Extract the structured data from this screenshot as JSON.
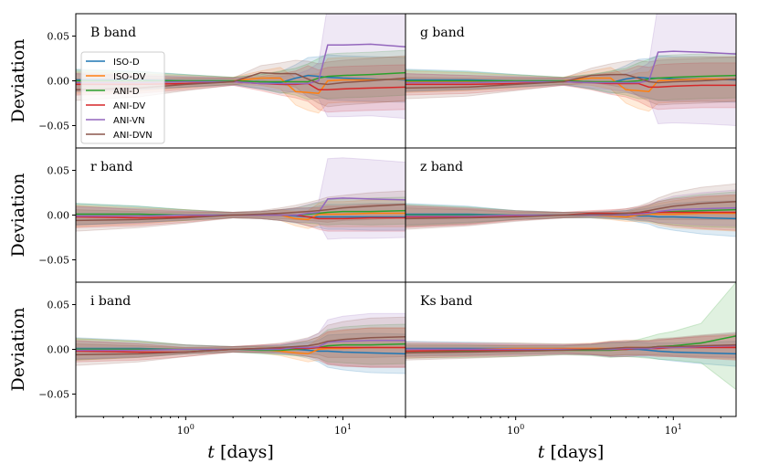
{
  "chart_data": {
    "type": "line",
    "ylabel": "Deviation",
    "xlabel": "t [days]",
    "xscale": "log",
    "xlim": [
      0.2,
      25
    ],
    "ylim": [
      -0.075,
      0.075
    ],
    "yticks": [
      -0.05,
      0.0,
      0.05
    ],
    "ytick_labels": [
      "−0.05",
      "0.00",
      "0.05"
    ],
    "xticks": [
      1,
      10
    ],
    "xtick_labels": [
      "10^0",
      "10^1"
    ],
    "grid": false,
    "legend_placement": "left, in B band panel",
    "colors": {
      "ISO-D": "#1f77b4",
      "ISO-DV": "#ff7f0e",
      "ANI-D": "#2ca02c",
      "ANI-DV": "#d62728",
      "ANI-VN": "#9467bd",
      "ANI-DVN": "#8c564b"
    },
    "legend": [
      "ISO-D",
      "ISO-DV",
      "ANI-D",
      "ANI-DV",
      "ANI-VN",
      "ANI-DVN"
    ],
    "x": [
      0.2,
      0.5,
      1,
      2,
      3,
      4,
      5,
      6,
      7,
      8,
      10,
      15,
      25
    ],
    "panels": [
      {
        "title": "B band",
        "band_halfwidth": [
          0.012,
          0.01,
          0.007,
          0.004,
          0.008,
          0.012,
          0.015,
          0.02,
          0.022,
          0.025,
          0.025,
          0.025,
          0.025
        ],
        "series": [
          {
            "name": "ISO-D",
            "values": [
              0.001,
              0.001,
              0,
              0,
              -0.001,
              -0.002,
              0.003,
              0.006,
              0.005,
              0.004,
              0.003,
              0.002,
              0.001
            ]
          },
          {
            "name": "ISO-DV",
            "values": [
              -0.002,
              -0.002,
              -0.001,
              0,
              0.003,
              0.003,
              -0.012,
              -0.013,
              -0.014,
              0,
              0.001,
              0.001,
              0.002
            ]
          },
          {
            "name": "ANI-D",
            "values": [
              0,
              0,
              0,
              0,
              -0.001,
              -0.001,
              -0.001,
              -0.001,
              0.003,
              0.005,
              0.006,
              0.007,
              0.009
            ]
          },
          {
            "name": "ANI-DV",
            "values": [
              -0.004,
              -0.004,
              -0.003,
              -0.001,
              -0.003,
              -0.004,
              -0.004,
              -0.003,
              -0.01,
              -0.01,
              -0.009,
              -0.008,
              -0.007
            ]
          },
          {
            "name": "ANI-VN",
            "values": [
              -0.002,
              -0.002,
              -0.001,
              -0.001,
              -0.003,
              -0.003,
              -0.003,
              -0.003,
              0,
              0.04,
              0.04,
              0.041,
              0.038
            ],
            "band_halfwidth": [
              0.01,
              0.008,
              0.006,
              0.004,
              0.006,
              0.008,
              0.01,
              0.015,
              0.02,
              0.08,
              0.08,
              0.08,
              0.08
            ]
          },
          {
            "name": "ANI-DVN",
            "values": [
              -0.01,
              -0.008,
              -0.004,
              -0.001,
              0.009,
              0.008,
              0.008,
              0.002,
              -0.003,
              -0.004,
              -0.002,
              0,
              0.003
            ]
          }
        ]
      },
      {
        "title": "g band",
        "band_halfwidth": [
          0.012,
          0.01,
          0.007,
          0.004,
          0.008,
          0.012,
          0.015,
          0.02,
          0.022,
          0.025,
          0.025,
          0.025,
          0.025
        ],
        "series": [
          {
            "name": "ISO-D",
            "values": [
              0.001,
              0.001,
              0,
              0,
              -0.001,
              -0.002,
              0.002,
              0.004,
              0.003,
              0.003,
              0.002,
              0.002,
              0.001
            ]
          },
          {
            "name": "ISO-DV",
            "values": [
              -0.001,
              -0.001,
              -0.001,
              0,
              0.003,
              0.003,
              -0.01,
              -0.011,
              -0.012,
              0,
              0.001,
              0.002,
              0.002
            ]
          },
          {
            "name": "ANI-D",
            "values": [
              0,
              0,
              0,
              0,
              -0.001,
              -0.001,
              -0.001,
              0,
              0.002,
              0.003,
              0.004,
              0.005,
              0.006
            ]
          },
          {
            "name": "ANI-DV",
            "values": [
              -0.004,
              -0.004,
              -0.003,
              -0.001,
              -0.002,
              -0.003,
              -0.003,
              -0.003,
              -0.007,
              -0.007,
              -0.006,
              -0.005,
              -0.005
            ]
          },
          {
            "name": "ANI-VN",
            "values": [
              -0.002,
              -0.002,
              -0.001,
              -0.001,
              -0.002,
              -0.002,
              -0.002,
              -0.002,
              0,
              0.032,
              0.033,
              0.032,
              0.03
            ],
            "band_halfwidth": [
              0.01,
              0.008,
              0.006,
              0.004,
              0.006,
              0.008,
              0.01,
              0.015,
              0.02,
              0.08,
              0.08,
              0.08,
              0.08
            ]
          },
          {
            "name": "ANI-DVN",
            "values": [
              -0.008,
              -0.007,
              -0.004,
              -0.001,
              0.006,
              0.007,
              0.007,
              0.003,
              -0.001,
              -0.002,
              -0.001,
              0,
              0.002
            ]
          }
        ]
      },
      {
        "title": "r band",
        "band_halfwidth": [
          0.012,
          0.009,
          0.006,
          0.003,
          0.004,
          0.006,
          0.008,
          0.01,
          0.012,
          0.014,
          0.014,
          0.015,
          0.015
        ],
        "series": [
          {
            "name": "ISO-D",
            "values": [
              0.001,
              0.001,
              0,
              0,
              0,
              0,
              -0.001,
              -0.002,
              -0.002,
              -0.002,
              -0.002,
              -0.002,
              -0.002
            ]
          },
          {
            "name": "ISO-DV",
            "values": [
              -0.001,
              -0.001,
              0,
              0,
              0,
              0,
              -0.004,
              -0.005,
              0.001,
              0.001,
              0.001,
              0.002,
              0.002
            ]
          },
          {
            "name": "ANI-D",
            "values": [
              0.001,
              0.001,
              0,
              0,
              0,
              0,
              0,
              0.001,
              0.002,
              0.003,
              0.004,
              0.004,
              0.005
            ]
          },
          {
            "name": "ANI-DV",
            "values": [
              -0.002,
              -0.003,
              -0.002,
              0,
              0,
              0,
              0,
              -0.002,
              -0.004,
              -0.004,
              -0.004,
              -0.003,
              -0.003
            ]
          },
          {
            "name": "ANI-VN",
            "values": [
              -0.001,
              -0.001,
              0,
              0,
              0,
              0,
              0,
              0.002,
              0.003,
              0.018,
              0.019,
              0.018,
              0.017
            ],
            "band_halfwidth": [
              0.01,
              0.008,
              0.005,
              0.003,
              0.004,
              0.006,
              0.008,
              0.01,
              0.012,
              0.045,
              0.045,
              0.044,
              0.042
            ]
          },
          {
            "name": "ANI-DVN",
            "values": [
              -0.006,
              -0.005,
              -0.003,
              0,
              0.001,
              0.002,
              0.003,
              0.004,
              0.005,
              0.006,
              0.008,
              0.01,
              0.012
            ]
          }
        ]
      },
      {
        "title": "z band",
        "band_halfwidth": [
          0.012,
          0.009,
          0.005,
          0.003,
          0.003,
          0.004,
          0.005,
          0.007,
          0.009,
          0.012,
          0.015,
          0.018,
          0.02
        ],
        "series": [
          {
            "name": "ISO-D",
            "values": [
              0.001,
              0.001,
              0,
              0,
              0,
              0,
              0,
              -0.001,
              -0.001,
              -0.002,
              -0.002,
              -0.003,
              -0.004
            ]
          },
          {
            "name": "ISO-DV",
            "values": [
              -0.001,
              -0.001,
              0,
              0,
              0,
              -0.001,
              -0.002,
              0,
              0.001,
              0.001,
              0.001,
              0.002,
              0.002
            ]
          },
          {
            "name": "ANI-D",
            "values": [
              0,
              0,
              0,
              0,
              0,
              0,
              0,
              0.001,
              0.002,
              0.003,
              0.004,
              0.005,
              0.006
            ]
          },
          {
            "name": "ANI-DV",
            "values": [
              -0.002,
              -0.002,
              -0.001,
              0,
              0.002,
              0.002,
              0.002,
              0.002,
              0.003,
              0.003,
              0.003,
              0.003,
              0.003
            ]
          },
          {
            "name": "ANI-VN",
            "values": [
              -0.001,
              -0.001,
              0,
              0,
              0,
              0,
              0,
              0.001,
              0.002,
              0.004,
              0.006,
              0.007,
              0.008
            ]
          },
          {
            "name": "ANI-DVN",
            "values": [
              -0.004,
              -0.003,
              -0.002,
              0,
              0.001,
              0.001,
              0.002,
              0.003,
              0.005,
              0.007,
              0.01,
              0.013,
              0.015
            ]
          }
        ]
      },
      {
        "title": "i band",
        "band_halfwidth": [
          0.012,
          0.009,
          0.005,
          0.003,
          0.004,
          0.005,
          0.007,
          0.009,
          0.012,
          0.018,
          0.02,
          0.022,
          0.022
        ],
        "series": [
          {
            "name": "ISO-D",
            "values": [
              0.001,
              0.001,
              0,
              0,
              0,
              0,
              0,
              -0.001,
              -0.002,
              -0.002,
              -0.003,
              -0.004,
              -0.005
            ]
          },
          {
            "name": "ISO-DV",
            "values": [
              0,
              0,
              0,
              0,
              0,
              -0.002,
              -0.004,
              -0.005,
              0,
              0.001,
              0.001,
              0.002,
              0.002
            ]
          },
          {
            "name": "ANI-D",
            "values": [
              0,
              0,
              0,
              0,
              -0.001,
              -0.001,
              0,
              0.001,
              0.002,
              0.004,
              0.005,
              0.005,
              0.006
            ]
          },
          {
            "name": "ANI-DV",
            "values": [
              -0.002,
              -0.003,
              -0.003,
              0,
              0.001,
              0.001,
              0.001,
              0.001,
              0.002,
              0.002,
              0.002,
              0.002,
              0.002
            ]
          },
          {
            "name": "ANI-VN",
            "values": [
              -0.001,
              -0.001,
              0,
              0,
              0,
              0,
              0.002,
              0.002,
              0.003,
              0.008,
              0.009,
              0.01,
              0.01
            ],
            "band_halfwidth": [
              0.01,
              0.008,
              0.005,
              0.003,
              0.004,
              0.005,
              0.007,
              0.01,
              0.015,
              0.025,
              0.028,
              0.03,
              0.03
            ]
          },
          {
            "name": "ANI-DVN",
            "values": [
              -0.006,
              -0.005,
              -0.003,
              0,
              0.001,
              0.002,
              0.003,
              0.004,
              0.006,
              0.009,
              0.011,
              0.013,
              0.014
            ]
          }
        ]
      },
      {
        "title": "Ks band",
        "band_halfwidth": [
          0.008,
          0.007,
          0.006,
          0.005,
          0.006,
          0.008,
          0.008,
          0.008,
          0.008,
          0.009,
          0.01,
          0.012,
          0.014
        ],
        "series": [
          {
            "name": "ISO-D",
            "values": [
              0.001,
              0.001,
              0.001,
              0.001,
              0,
              0,
              0,
              0,
              -0.001,
              -0.002,
              -0.003,
              -0.004,
              -0.005
            ]
          },
          {
            "name": "ISO-DV",
            "values": [
              0,
              0,
              0.001,
              0.001,
              0.001,
              0.001,
              0.002,
              0.002,
              0.002,
              0.002,
              0.002,
              0.003,
              0.003
            ]
          },
          {
            "name": "ANI-D",
            "values": [
              -0.002,
              -0.002,
              -0.002,
              -0.001,
              -0.001,
              -0.001,
              0,
              0.001,
              0.002,
              0.003,
              0.004,
              0.007,
              0.015
            ],
            "band_halfwidth": [
              0.008,
              0.007,
              0.006,
              0.005,
              0.006,
              0.008,
              0.008,
              0.01,
              0.012,
              0.014,
              0.016,
              0.022,
              0.06
            ]
          },
          {
            "name": "ANI-DV",
            "values": [
              -0.002,
              -0.001,
              -0.001,
              0,
              0,
              0,
              0,
              0.001,
              0.001,
              0.001,
              0.002,
              0.002,
              0.002
            ]
          },
          {
            "name": "ANI-VN",
            "values": [
              0,
              0,
              0,
              0,
              0,
              0,
              0.001,
              0.001,
              0.001,
              0.002,
              0.002,
              0.003,
              0.004
            ]
          },
          {
            "name": "ANI-DVN",
            "values": [
              -0.004,
              -0.003,
              -0.002,
              -0.001,
              0,
              0.001,
              0.002,
              0.002,
              0.002,
              0.003,
              0.003,
              0.004,
              0.005
            ]
          }
        ]
      }
    ]
  }
}
